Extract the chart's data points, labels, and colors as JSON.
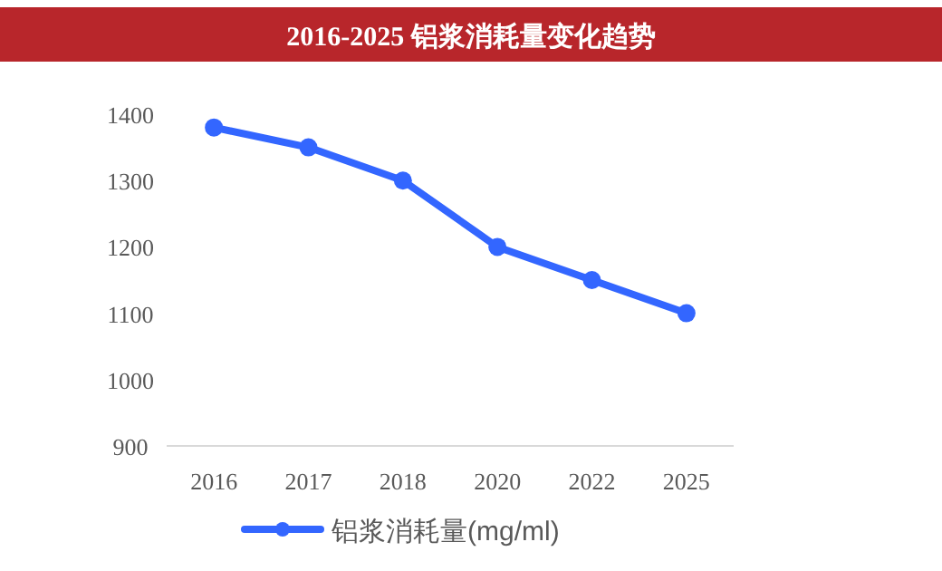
{
  "chart_data": {
    "type": "line",
    "title": "2016-2025  铝浆消耗量变化趋势",
    "categories": [
      "2016",
      "2017",
      "2018",
      "2020",
      "2022",
      "2025"
    ],
    "series": [
      {
        "name": "铝浆消耗量(mg/ml)",
        "color": "#3366ff",
        "values": [
          1380,
          1350,
          1300,
          1200,
          1150,
          1100
        ]
      }
    ],
    "ylim": [
      900,
      1400
    ],
    "yticks": [
      900,
      1000,
      1100,
      1200,
      1300,
      1400
    ],
    "marker": "circle",
    "legend": "bottom",
    "grid": false
  }
}
